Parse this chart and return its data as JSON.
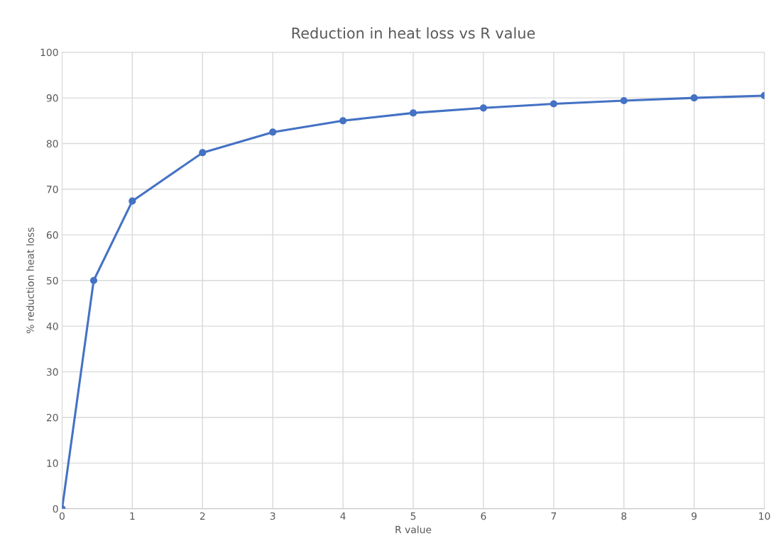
{
  "chart_data": {
    "type": "line",
    "title": "Reduction in heat loss vs R value",
    "xlabel": "R value",
    "ylabel": "% reduction heat loss",
    "x": [
      0,
      0.45,
      1,
      2,
      3,
      4,
      5,
      6,
      7,
      8,
      9,
      10
    ],
    "series": [
      {
        "color": "#4472c4",
        "values": [
          0,
          50,
          67.4,
          78,
          82.5,
          85,
          86.7,
          87.8,
          88.7,
          89.4,
          90,
          90.5
        ]
      }
    ],
    "xlim": [
      0,
      10
    ],
    "xticks": [
      0,
      1,
      2,
      3,
      4,
      5,
      6,
      7,
      8,
      9,
      10
    ],
    "ylim": [
      0,
      100
    ],
    "yticks": [
      0,
      10,
      20,
      30,
      40,
      50,
      60,
      70,
      80,
      90,
      100
    ],
    "grid": true,
    "marker": "circle",
    "line_style": "solid"
  }
}
